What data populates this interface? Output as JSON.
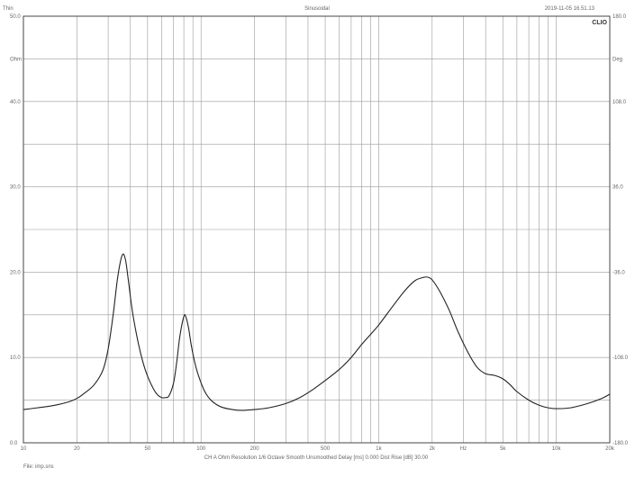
{
  "header": {
    "left": "Thin",
    "center": "Sinusoidal",
    "right": "2019-11-05 16.51.13",
    "brand": "CLIO"
  },
  "footer": {
    "info": "CH A   Ohm   Resolution 1/6 Octave   Smooth Unsmoothed   Delay [ms] 0.000   Dist Rise [dB] 30.00",
    "file": "File: imp.sns"
  },
  "chart_data": {
    "type": "line",
    "title": "",
    "xlabel": "Hz",
    "ylabel_left": "Ohm",
    "ylabel_right": "Deg",
    "xscale": "log",
    "xlim": [
      10,
      20000
    ],
    "ylim": [
      0,
      50
    ],
    "ylim_right": [
      -180,
      180
    ],
    "grid": true,
    "x_ticks": [
      {
        "v": 10,
        "label": "10"
      },
      {
        "v": 20,
        "label": "20"
      },
      {
        "v": 50,
        "label": "50"
      },
      {
        "v": 100,
        "label": "100"
      },
      {
        "v": 200,
        "label": "200"
      },
      {
        "v": 500,
        "label": "500"
      },
      {
        "v": 1000,
        "label": "1k"
      },
      {
        "v": 2000,
        "label": "2k"
      },
      {
        "v": 3000,
        "label": "Hz"
      },
      {
        "v": 5000,
        "label": "5k"
      },
      {
        "v": 10000,
        "label": "10k"
      },
      {
        "v": 20000,
        "label": "20k"
      }
    ],
    "y_ticks_left": [
      "0.0",
      "10.0",
      "20.0",
      "30.0",
      "40.0",
      "50.0"
    ],
    "y_ticks_left_values": [
      0,
      10,
      20,
      30,
      40,
      50
    ],
    "y_unit_left": "Ohm",
    "y_unit_left_value": 45,
    "y_ticks_right": [
      "-180.0",
      "-108.0",
      "-36.0",
      "36.0",
      "108.0",
      "180.0"
    ],
    "y_unit_right": "Deg",
    "series": [
      {
        "color": "#222222",
        "x": [
          10,
          12,
          15,
          18,
          20,
          22,
          25,
          28,
          30,
          32,
          34,
          36,
          37.5,
          39,
          41,
          44,
          47,
          50,
          54,
          57,
          60,
          63,
          66,
          70,
          73,
          76,
          80,
          82,
          85,
          88,
          92,
          97,
          105,
          115,
          130,
          150,
          170,
          200,
          240,
          300,
          360,
          430,
          500,
          600,
          700,
          800,
          900,
          1000,
          1200,
          1400,
          1600,
          1800,
          1900,
          2000,
          2200,
          2500,
          2800,
          3200,
          3600,
          4000,
          4500,
          5000,
          5500,
          6000,
          7000,
          8000,
          9000,
          10000,
          12000,
          15000,
          18000,
          20000
        ],
        "values": [
          3.9,
          4.1,
          4.4,
          4.8,
          5.2,
          5.8,
          6.8,
          8.5,
          11.0,
          15.0,
          19.5,
          22.0,
          21.5,
          19.0,
          15.5,
          12.0,
          9.5,
          7.8,
          6.3,
          5.6,
          5.3,
          5.3,
          5.5,
          7.0,
          9.5,
          12.5,
          14.8,
          14.8,
          13.5,
          11.5,
          9.5,
          7.8,
          6.0,
          4.9,
          4.2,
          3.9,
          3.8,
          3.9,
          4.1,
          4.6,
          5.3,
          6.3,
          7.3,
          8.6,
          10.0,
          11.5,
          12.7,
          13.8,
          16.0,
          17.8,
          19.0,
          19.4,
          19.4,
          19.1,
          17.8,
          15.5,
          13.0,
          10.5,
          8.8,
          8.1,
          7.9,
          7.5,
          6.8,
          6.0,
          5.0,
          4.4,
          4.1,
          4.0,
          4.1,
          4.6,
          5.2,
          5.7
        ]
      }
    ]
  }
}
